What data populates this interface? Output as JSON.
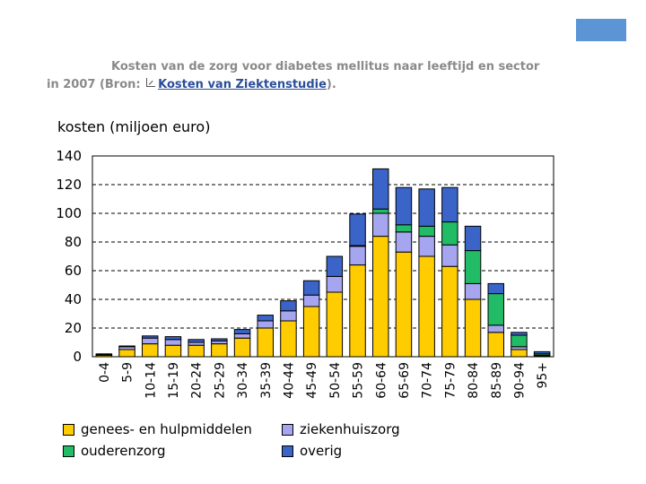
{
  "caption": {
    "line1": "Kosten van de zorg voor diabetes mellitus naar leeftijd en sector",
    "line2_prefix": "in 2007 (Bron:",
    "link_text": "Kosten van Ziektenstudie",
    "line2_suffix": ")."
  },
  "colors": {
    "genees": "#ffcc00",
    "ziekenhuis": "#a6a6f0",
    "ouderen": "#22bb66",
    "overig": "#3a64c8",
    "accent_box": "#5b95d6"
  },
  "chart_data": {
    "type": "bar",
    "stacked": true,
    "ylabel": "kosten (miljoen euro)",
    "xlabel": "",
    "ylim": [
      0,
      140
    ],
    "yticks": [
      0,
      20,
      40,
      60,
      80,
      100,
      120,
      140
    ],
    "grid": "horizontal-dashed",
    "legend_position": "bottom",
    "categories": [
      "0-4",
      "5-9",
      "10-14",
      "15-19",
      "20-24",
      "25-29",
      "30-34",
      "35-39",
      "40-44",
      "45-49",
      "50-54",
      "55-59",
      "60-64",
      "65-69",
      "70-74",
      "75-79",
      "80-84",
      "85-89",
      "90-94",
      "95+"
    ],
    "series": [
      {
        "name": "genees- en hulpmiddelen",
        "color_key": "genees",
        "values": [
          1,
          5,
          9,
          8,
          8,
          9,
          13,
          20,
          25,
          35,
          45,
          64,
          84,
          73,
          70,
          63,
          40,
          17,
          5,
          0.5
        ]
      },
      {
        "name": "ziekenhuiszorg",
        "color_key": "ziekenhuis",
        "values": [
          0.5,
          2,
          4,
          4,
          2,
          2,
          3,
          5,
          7,
          8,
          11,
          13,
          16,
          14,
          14,
          15,
          11,
          5,
          2,
          0.5
        ]
      },
      {
        "name": "ouderenzorg",
        "color_key": "ouderen",
        "values": [
          0,
          0,
          0,
          0,
          0,
          0,
          0,
          0,
          0,
          0,
          0,
          0.5,
          3,
          5,
          7,
          16,
          23,
          22,
          8,
          1
        ]
      },
      {
        "name": "overig",
        "color_key": "overig",
        "values": [
          0.5,
          0.5,
          1.5,
          2,
          2,
          1.5,
          3,
          4,
          7,
          10,
          14,
          22,
          28,
          26,
          26,
          24,
          17,
          7,
          2,
          1.5
        ]
      }
    ]
  }
}
